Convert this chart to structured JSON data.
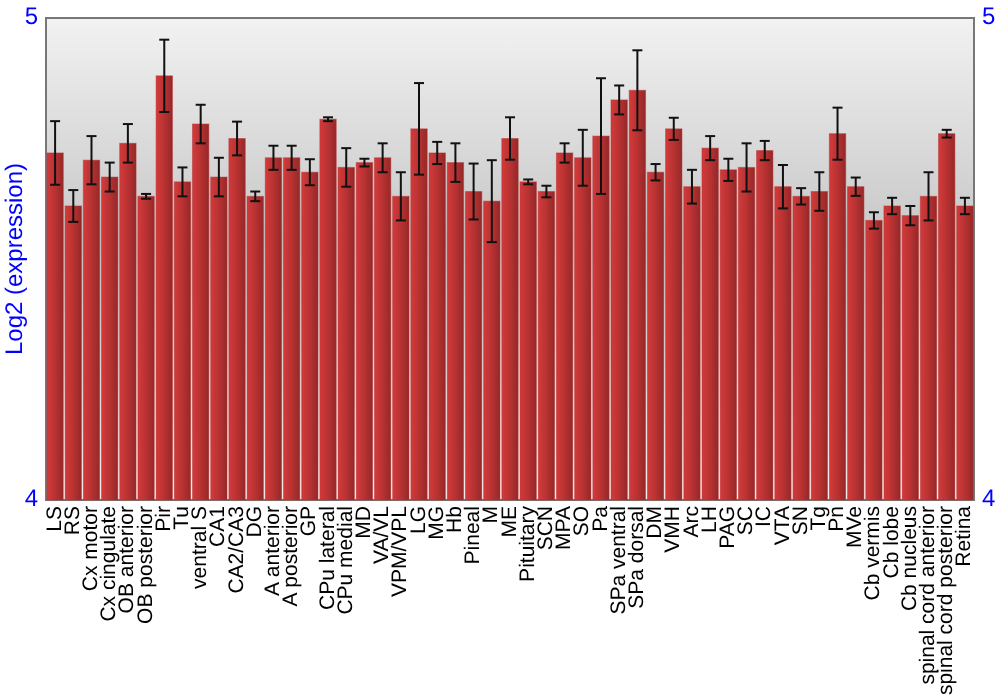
{
  "chart_data": {
    "type": "bar",
    "ylabel": "Log2 (expression)",
    "categories": [
      "LS",
      "RS",
      "Cx motor",
      "Cx cingulate",
      "OB anterior",
      "OB posterior",
      "Pir",
      "Tu",
      "ventral S",
      "CA1",
      "CA2/CA3",
      "DG",
      "A anterior",
      "A posterior",
      "GP",
      "CPu lateral",
      "CPu medial",
      "MD",
      "VA/VL",
      "VPM/VPL",
      "LG",
      "MG",
      "Hb",
      "Pineal",
      "M",
      "ME",
      "Pituitary",
      "SCN",
      "MPA",
      "SO",
      "Pa",
      "SPa ventral",
      "SPa dorsal",
      "DM",
      "VMH",
      "Arc",
      "LH",
      "PAG",
      "SC",
      "IC",
      "VTA",
      "SN",
      "Tg",
      "Pn",
      "MVe",
      "Cb vermis",
      "Cb lobe",
      "Cb nucleus",
      "spinal cord anterior",
      "spinal cord posterior",
      "Retina"
    ],
    "series": [
      {
        "color": "#b83232",
        "values": [
          4.72,
          4.61,
          4.705,
          4.67,
          4.74,
          4.63,
          4.88,
          4.66,
          4.78,
          4.67,
          4.75,
          4.63,
          4.71,
          4.71,
          4.68,
          4.79,
          4.69,
          4.7,
          4.71,
          4.63,
          4.77,
          4.72,
          4.7,
          4.64,
          4.62,
          4.75,
          4.66,
          4.64,
          4.72,
          4.71,
          4.755,
          4.83,
          4.85,
          4.68,
          4.77,
          4.65,
          4.73,
          4.685,
          4.69,
          4.725,
          4.65,
          4.63,
          4.64,
          4.76,
          4.65,
          4.58,
          4.61,
          4.59,
          4.63,
          4.76,
          4.61
        ],
        "errors": [
          0.066,
          0.033,
          0.05,
          0.03,
          0.04,
          0.005,
          0.075,
          0.03,
          0.04,
          0.04,
          0.035,
          0.01,
          0.025,
          0.025,
          0.027,
          0.004,
          0.04,
          0.008,
          0.03,
          0.05,
          0.095,
          0.023,
          0.04,
          0.058,
          0.085,
          0.044,
          0.005,
          0.012,
          0.02,
          0.058,
          0.12,
          0.03,
          0.083,
          0.017,
          0.023,
          0.035,
          0.025,
          0.023,
          0.05,
          0.02,
          0.045,
          0.017,
          0.04,
          0.054,
          0.019,
          0.017,
          0.017,
          0.02,
          0.05,
          0.008,
          0.017
        ]
      }
    ],
    "ylim": [
      4,
      5
    ],
    "yticks": [
      4,
      5
    ],
    "y2lim": [
      4,
      5
    ],
    "y2ticks": [
      4,
      5
    ],
    "grid": false
  }
}
